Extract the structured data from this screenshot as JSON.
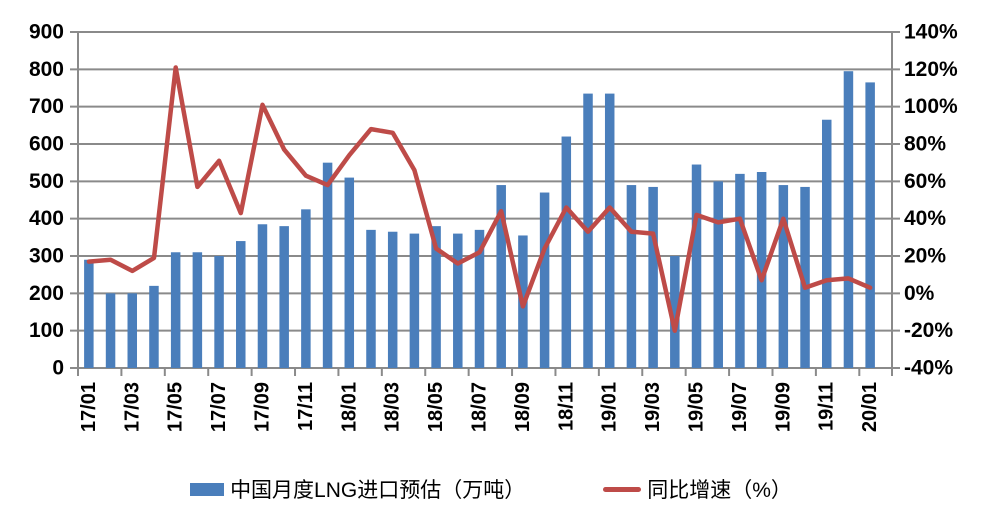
{
  "chart_data": {
    "type": "bar+line dual-axis combo",
    "categories": [
      "17/01",
      "17/02",
      "17/03",
      "17/04",
      "17/05",
      "17/06",
      "17/07",
      "17/08",
      "17/09",
      "17/10",
      "17/11",
      "17/12",
      "18/01",
      "18/02",
      "18/03",
      "18/04",
      "18/05",
      "18/06",
      "18/07",
      "18/08",
      "18/09",
      "18/10",
      "18/11",
      "18/12",
      "19/01",
      "19/02",
      "19/03",
      "19/04",
      "19/05",
      "19/06",
      "19/07",
      "19/08",
      "19/09",
      "19/10",
      "19/11",
      "19/12",
      "20/01"
    ],
    "x_tick_label_step": 2,
    "series": [
      {
        "name": "中国月度LNG进口预估（万吨）",
        "type": "bar",
        "axis": "left",
        "values": [
          290,
          200,
          200,
          220,
          310,
          310,
          300,
          340,
          385,
          380,
          425,
          550,
          510,
          370,
          365,
          360,
          380,
          360,
          370,
          490,
          355,
          470,
          620,
          735,
          735,
          490,
          485,
          300,
          545,
          500,
          520,
          525,
          490,
          485,
          665,
          795,
          765
        ]
      },
      {
        "name": "同比增速（%）",
        "type": "line",
        "axis": "right",
        "values": [
          17,
          18,
          12,
          19,
          121,
          57,
          71,
          43,
          101,
          77,
          63,
          58,
          74,
          88,
          86,
          66,
          24,
          16,
          22,
          44,
          -7,
          24,
          46,
          33,
          46,
          33,
          32,
          -20,
          42,
          38,
          40,
          7,
          40,
          3,
          7,
          8,
          3
        ]
      }
    ],
    "left_axis": {
      "min": 0,
      "max": 900,
      "step": 100,
      "ticks": [
        "0",
        "100",
        "200",
        "300",
        "400",
        "500",
        "600",
        "700",
        "800",
        "900"
      ]
    },
    "right_axis": {
      "min": -40,
      "max": 140,
      "step": 20,
      "ticks": [
        "-40%",
        "-20%",
        "0%",
        "20%",
        "40%",
        "60%",
        "80%",
        "100%",
        "120%",
        "140%"
      ]
    },
    "grid": true,
    "title": "",
    "legend_position": "bottom"
  },
  "legend": {
    "bar_label": "中国月度LNG进口预估（万吨）",
    "line_label": "同比增速（%）"
  },
  "colors": {
    "bar": "#4A7EBB",
    "line": "#BE4B48",
    "grid": "#8A8A8A",
    "axis_line": "#8A8A8A",
    "text": "#000000",
    "background": "#FFFFFF"
  }
}
